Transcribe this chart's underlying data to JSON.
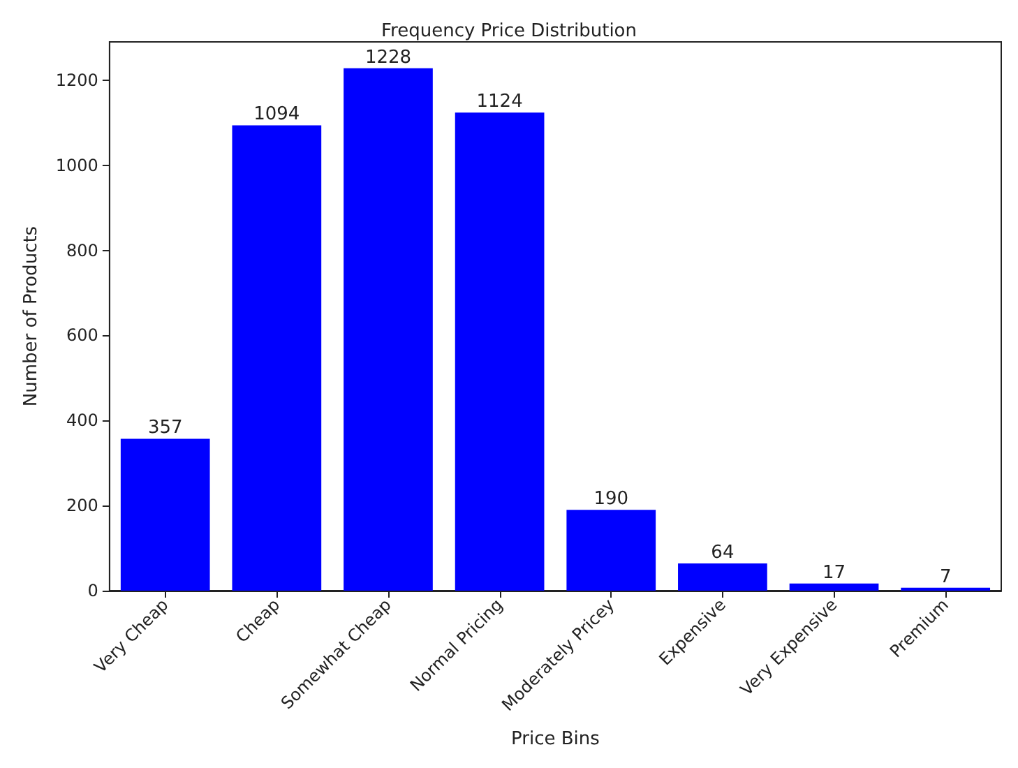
{
  "chart_data": {
    "type": "bar",
    "title": "Frequency Price Distribution",
    "xlabel": "Price Bins",
    "ylabel": "Number of Products",
    "categories": [
      "Very Cheap",
      "Cheap",
      "Somewhat Cheap",
      "Normal Pricing",
      "Moderately Pricey",
      "Expensive",
      "Very Expensive",
      "Premium"
    ],
    "values": [
      357,
      1094,
      1228,
      1124,
      190,
      64,
      17,
      7
    ],
    "color": "#0000ff",
    "ylim": [
      0,
      1290
    ],
    "yticks": [
      0,
      200,
      400,
      600,
      800,
      1000,
      1200
    ],
    "grid": false,
    "data_labels": true
  }
}
